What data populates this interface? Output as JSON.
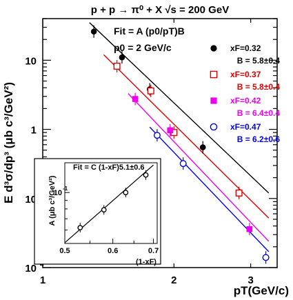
{
  "chart_data": [
    {
      "type": "scatter",
      "title": "p + p → π⁰ + X   √s = 200 GeV",
      "xlabel": "pT(GeV/c)",
      "ylabel": "E d³σ/dp³ (μb c³/GeV²)",
      "x_scale": "log",
      "y_scale": "log",
      "xlim": [
        1.0,
        3.45
      ],
      "ylim": [
        0.01,
        40
      ],
      "x_ticks": [
        {
          "value": 1,
          "label": "1"
        },
        {
          "value": 2,
          "label": "2"
        },
        {
          "value": 3,
          "label": "3"
        }
      ],
      "y_ticks": [
        {
          "value": 10,
          "label": "10"
        },
        {
          "value": 1,
          "label": "1"
        },
        {
          "value": 0.1,
          "label": "10",
          "exp": "-1"
        },
        {
          "value": 0.01,
          "label": "10",
          "exp": "-2"
        }
      ],
      "annotations": {
        "fit_formula": "Fit = A (p0/pT)B",
        "p0_text": "p0 = 2 GeV/c"
      },
      "series": [
        {
          "name": "xF=0.32",
          "fit_label": "B = 5.8±0.4",
          "color": "#000000",
          "marker": "filled-circle",
          "x": [
            1.31,
            1.52,
            1.76,
            2.33
          ],
          "y": [
            26,
            11,
            3.8,
            0.55
          ],
          "fit": {
            "x": [
              1.28,
              3.3
            ],
            "y": [
              35,
              0.12
            ]
          }
        },
        {
          "name": "xF=0.37",
          "fit_label": "B = 5.8±0.4",
          "color": "#e00000",
          "marker": "open-square",
          "x": [
            1.48,
            1.77,
            2.0,
            2.82
          ],
          "y": [
            8.2,
            3.6,
            0.9,
            0.12
          ],
          "fit": {
            "x": [
              1.38,
              3.3
            ],
            "y": [
              12,
              0.052
            ]
          }
        },
        {
          "name": "xF=0.42",
          "fit_label": "B = 6.4±0.4",
          "color": "#ee00ee",
          "marker": "filled-square",
          "x": [
            1.63,
            1.96,
            2.98
          ],
          "y": [
            2.75,
            0.97,
            0.036
          ],
          "fit": {
            "x": [
              1.57,
              3.3
            ],
            "y": [
              3.3,
              0.024
            ]
          }
        },
        {
          "name": "xF=0.47",
          "fit_label": "B = 6.2±0.6",
          "color": "#0000ee",
          "marker": "open-circle",
          "x": [
            1.83,
            2.1,
            3.25
          ],
          "y": [
            0.82,
            0.32,
            0.014
          ],
          "fit": {
            "x": [
              1.76,
              3.3
            ],
            "y": [
              1.08,
              0.017
            ]
          }
        }
      ]
    },
    {
      "type": "scatter",
      "title": "Fit = C (1-xF)5.1±0.6",
      "xlabel": "(1-xF)",
      "ylabel": "A (μb c³/GeV²)",
      "x_scale": "log",
      "y_scale": "log",
      "xlim": [
        0.5,
        0.71
      ],
      "ylim": [
        0.05,
        0.15
      ],
      "x_ticks": [
        {
          "value": 0.5,
          "label": "0.5"
        },
        {
          "value": 0.6,
          "label": "0.6"
        },
        {
          "value": 0.7,
          "label": "0.7"
        }
      ],
      "y_ticks": [
        {
          "value": 0.1,
          "label": "10",
          "exp": "-1"
        }
      ],
      "series": [
        {
          "color": "#000000",
          "marker": "open-circle",
          "x": [
            0.53,
            0.58,
            0.63,
            0.68
          ],
          "y": [
            0.062,
            0.079,
            0.1,
            0.127
          ],
          "fit": {
            "x": [
              0.5,
              0.7
            ],
            "y": [
              0.0505,
              0.1455
            ]
          }
        }
      ]
    }
  ]
}
